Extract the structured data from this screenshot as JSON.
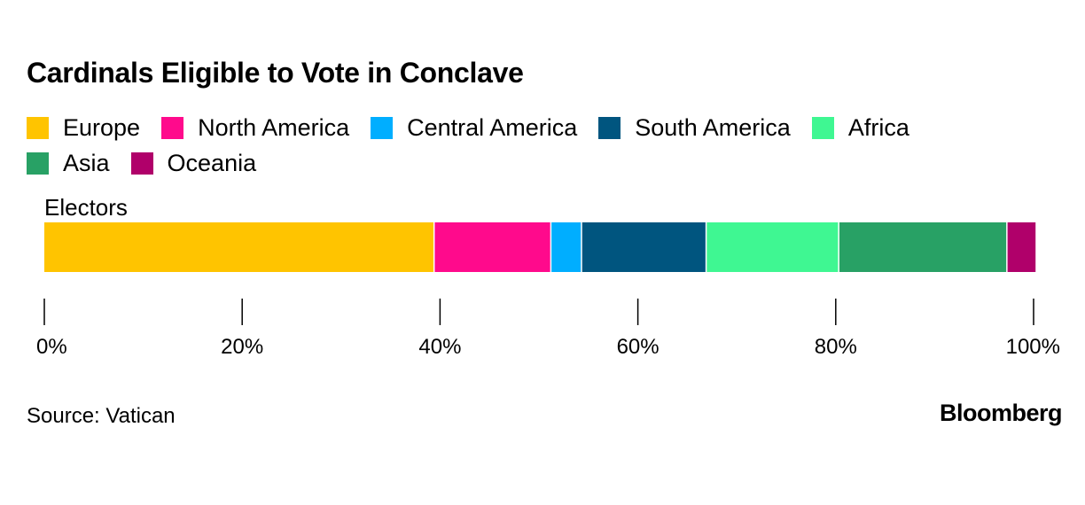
{
  "chart_data": {
    "type": "bar",
    "orientation": "horizontal-stacked-percent",
    "title": "Cardinals Eligible to Vote in Conclave",
    "categories": [
      "Electors"
    ],
    "series": [
      {
        "name": "Europe",
        "values": [
          39.4
        ],
        "color": "#FFC400"
      },
      {
        "name": "North America",
        "values": [
          11.8
        ],
        "color": "#FF0A8C"
      },
      {
        "name": "Central America",
        "values": [
          3.1
        ],
        "color": "#00AEFF"
      },
      {
        "name": "South America",
        "values": [
          12.6
        ],
        "color": "#00557F"
      },
      {
        "name": "Africa",
        "values": [
          13.4
        ],
        "color": "#3FF792"
      },
      {
        "name": "Asia",
        "values": [
          17.0
        ],
        "color": "#28A165"
      },
      {
        "name": "Oceania",
        "values": [
          2.9
        ],
        "color": "#B0006A"
      }
    ],
    "xlim": [
      0,
      100
    ],
    "xticks": [
      "0%",
      "20%",
      "40%",
      "60%",
      "80%",
      "100%"
    ],
    "xlabel": "",
    "ylabel": "",
    "grid": false,
    "legend_position": "top"
  },
  "source": "Source: Vatican",
  "brand": "Bloomberg"
}
